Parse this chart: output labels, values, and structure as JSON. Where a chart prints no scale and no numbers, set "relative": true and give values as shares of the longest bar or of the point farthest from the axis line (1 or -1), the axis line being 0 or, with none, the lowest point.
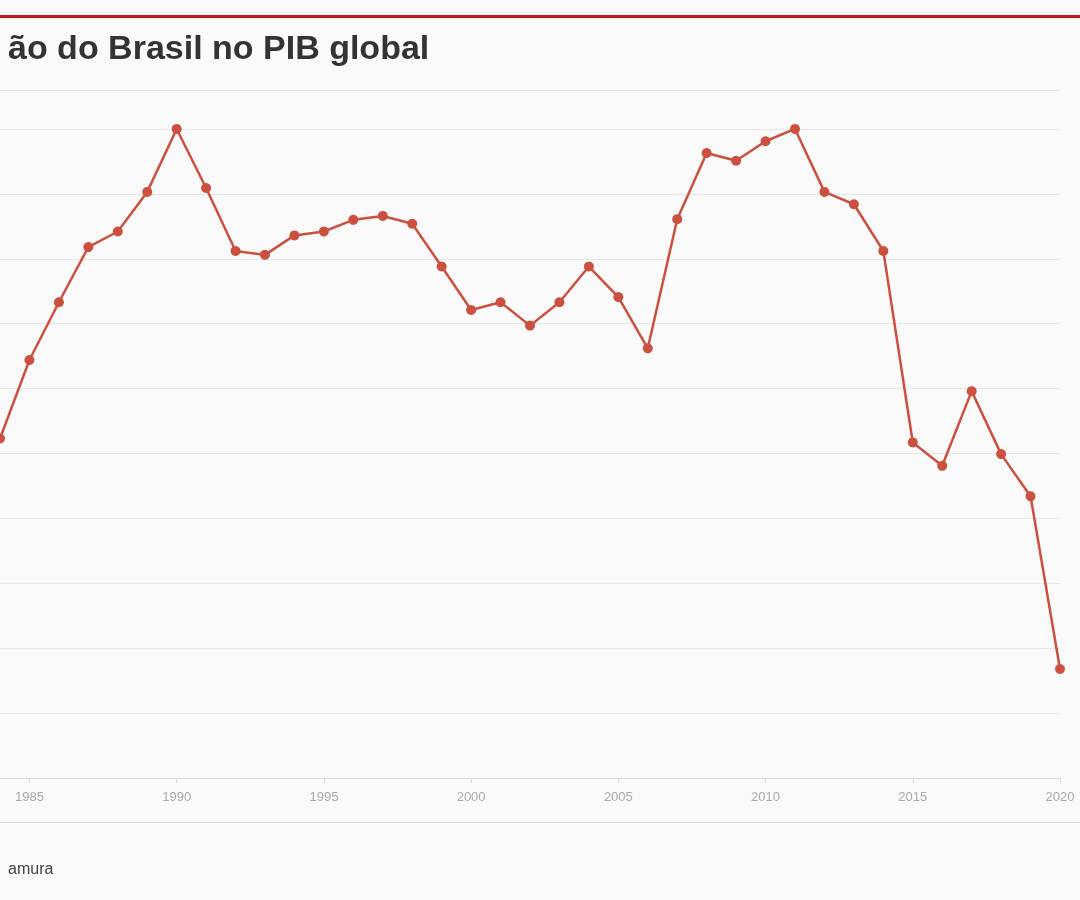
{
  "chart_data": {
    "type": "line",
    "title": "ão do Brasil no PIB global",
    "annotations": [
      "amura"
    ],
    "x": [
      1984,
      1985,
      1986,
      1987,
      1988,
      1989,
      1990,
      1991,
      1992,
      1993,
      1994,
      1995,
      1996,
      1997,
      1998,
      1999,
      2000,
      2001,
      2002,
      2003,
      2004,
      2005,
      2006,
      2007,
      2008,
      2009,
      2010,
      2011,
      2012,
      2013,
      2014,
      2015,
      2016,
      2017,
      2018,
      2019,
      2020
    ],
    "series": [
      {
        "color": "#cc5040",
        "values": [
          0.523,
          0.644,
          0.733,
          0.818,
          0.842,
          0.903,
          1,
          0.909,
          0.812,
          0.806,
          0.836,
          0.842,
          0.86,
          0.866,
          0.854,
          0.788,
          0.721,
          0.733,
          0.697,
          0.733,
          0.788,
          0.741,
          0.662,
          0.861,
          0.963,
          0.951,
          0.981,
          1,
          0.903,
          0.884,
          0.812,
          0.517,
          0.481,
          0.596,
          0.499,
          0.434,
          0.168
        ]
      }
    ],
    "relative": true,
    "xlim": [
      1984,
      2020
    ],
    "xticks": [
      1985,
      1990,
      1995,
      2000,
      2005,
      2010,
      2015,
      2020
    ],
    "grid": "y",
    "marker": "circle",
    "line_style": "solid"
  }
}
